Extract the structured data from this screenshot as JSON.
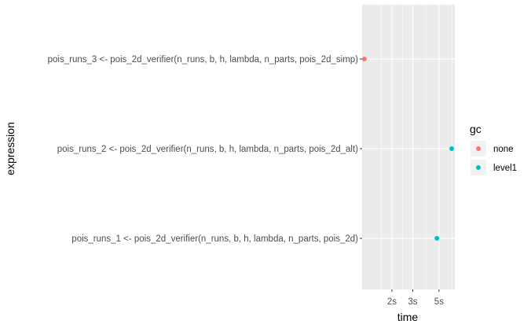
{
  "chart_data": {
    "type": "scatter",
    "xlabel": "time",
    "ylabel": "expression",
    "x_scale": "log",
    "xlim": [
      1.12,
      6.8
    ],
    "x_ticks": [
      {
        "value": 2,
        "label": "2s"
      },
      {
        "value": 3,
        "label": "3s"
      },
      {
        "value": 5,
        "label": "5s"
      }
    ],
    "categories": [
      "pois_runs_1 <- pois_2d_verifier(n_runs, b, h, lambda, n_parts, pois_2d)",
      "pois_runs_2 <- pois_2d_verifier(n_runs, b, h, lambda, n_parts, pois_2d_alt)",
      "pois_runs_3 <- pois_2d_verifier(n_runs, b, h, lambda, n_parts, pois_2d_simp)"
    ],
    "points": [
      {
        "category": "pois_runs_3 <- pois_2d_verifier(n_runs, b, h, lambda, n_parts, pois_2d_simp)",
        "time": 1.17,
        "gc": "none"
      },
      {
        "category": "pois_runs_2 <- pois_2d_verifier(n_runs, b, h, lambda, n_parts, pois_2d_alt)",
        "time": 6.4,
        "gc": "level1"
      },
      {
        "category": "pois_runs_1 <- pois_2d_verifier(n_runs, b, h, lambda, n_parts, pois_2d)",
        "time": 4.8,
        "gc": "level1"
      }
    ],
    "legend": {
      "title": "gc",
      "placement": "right",
      "entries": [
        {
          "label": "none",
          "color": "#F8766D"
        },
        {
          "label": "level1",
          "color": "#00BFC4"
        }
      ]
    },
    "grid": true,
    "panel_background": "#EBEBEB",
    "gridline_color": "#FFFFFF"
  }
}
